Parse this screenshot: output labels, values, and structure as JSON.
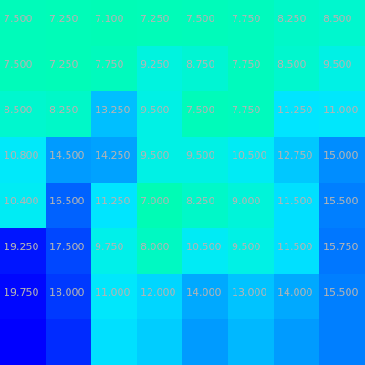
{
  "chart_data": {
    "type": "heatmap",
    "colormap": "blue-cyan-green",
    "value_range": [
      6.0,
      20.0
    ],
    "rows": [
      {
        "values": [
          7.5,
          7.25,
          7.1,
          7.25,
          7.5,
          7.75,
          8.25,
          8.5
        ],
        "labels": [
          "7.500",
          "7.250",
          "7.100",
          "7.250",
          "7.500",
          "7.750",
          "8.250",
          "8.500"
        ]
      },
      {
        "values": [
          7.5,
          7.25,
          7.75,
          9.25,
          8.75,
          7.75,
          8.5,
          9.5
        ],
        "labels": [
          "7.500",
          "7.250",
          "7.750",
          "9.250",
          "8.750",
          "7.750",
          "8.500",
          "9.500"
        ]
      },
      {
        "values": [
          8.5,
          8.25,
          13.25,
          9.5,
          7.5,
          7.75,
          11.25,
          11.0
        ],
        "labels": [
          "8.500",
          "8.250",
          "13.250",
          "9.500",
          "7.500",
          "7.750",
          "11.250",
          "11.000"
        ]
      },
      {
        "values": [
          10.8,
          14.5,
          14.25,
          9.5,
          9.5,
          10.5,
          12.75,
          15.0
        ],
        "labels": [
          "10.800",
          "14.500",
          "14.250",
          "9.500",
          "9.500",
          "10.500",
          "12.750",
          "15.000"
        ]
      },
      {
        "values": [
          10.4,
          16.5,
          11.25,
          7.0,
          8.25,
          9.0,
          11.5,
          15.5
        ],
        "labels": [
          "10.400",
          "16.500",
          "11.250",
          "7.000",
          "8.250",
          "9.000",
          "11.500",
          "15.500"
        ]
      },
      {
        "values": [
          19.25,
          17.5,
          9.75,
          8.0,
          10.5,
          9.5,
          11.5,
          15.75
        ],
        "labels": [
          "19.250",
          "17.500",
          "9.750",
          "8.000",
          "10.500",
          "9.500",
          "11.500",
          "15.750"
        ]
      },
      {
        "values": [
          19.75,
          18.0,
          11.0,
          12.0,
          14.0,
          13.0,
          14.0,
          15.5
        ],
        "labels": [
          "19.750",
          "18.000",
          "11.000",
          "12.000",
          "14.000",
          "13.000",
          "14.000",
          "15.500"
        ]
      },
      {
        "values": [
          20.0,
          18.5,
          11.5,
          12.5,
          14.5,
          13.5,
          14.5,
          15.5
        ],
        "labels": [
          "",
          "",
          "",
          "",
          "",
          "",
          "",
          ""
        ]
      }
    ]
  }
}
